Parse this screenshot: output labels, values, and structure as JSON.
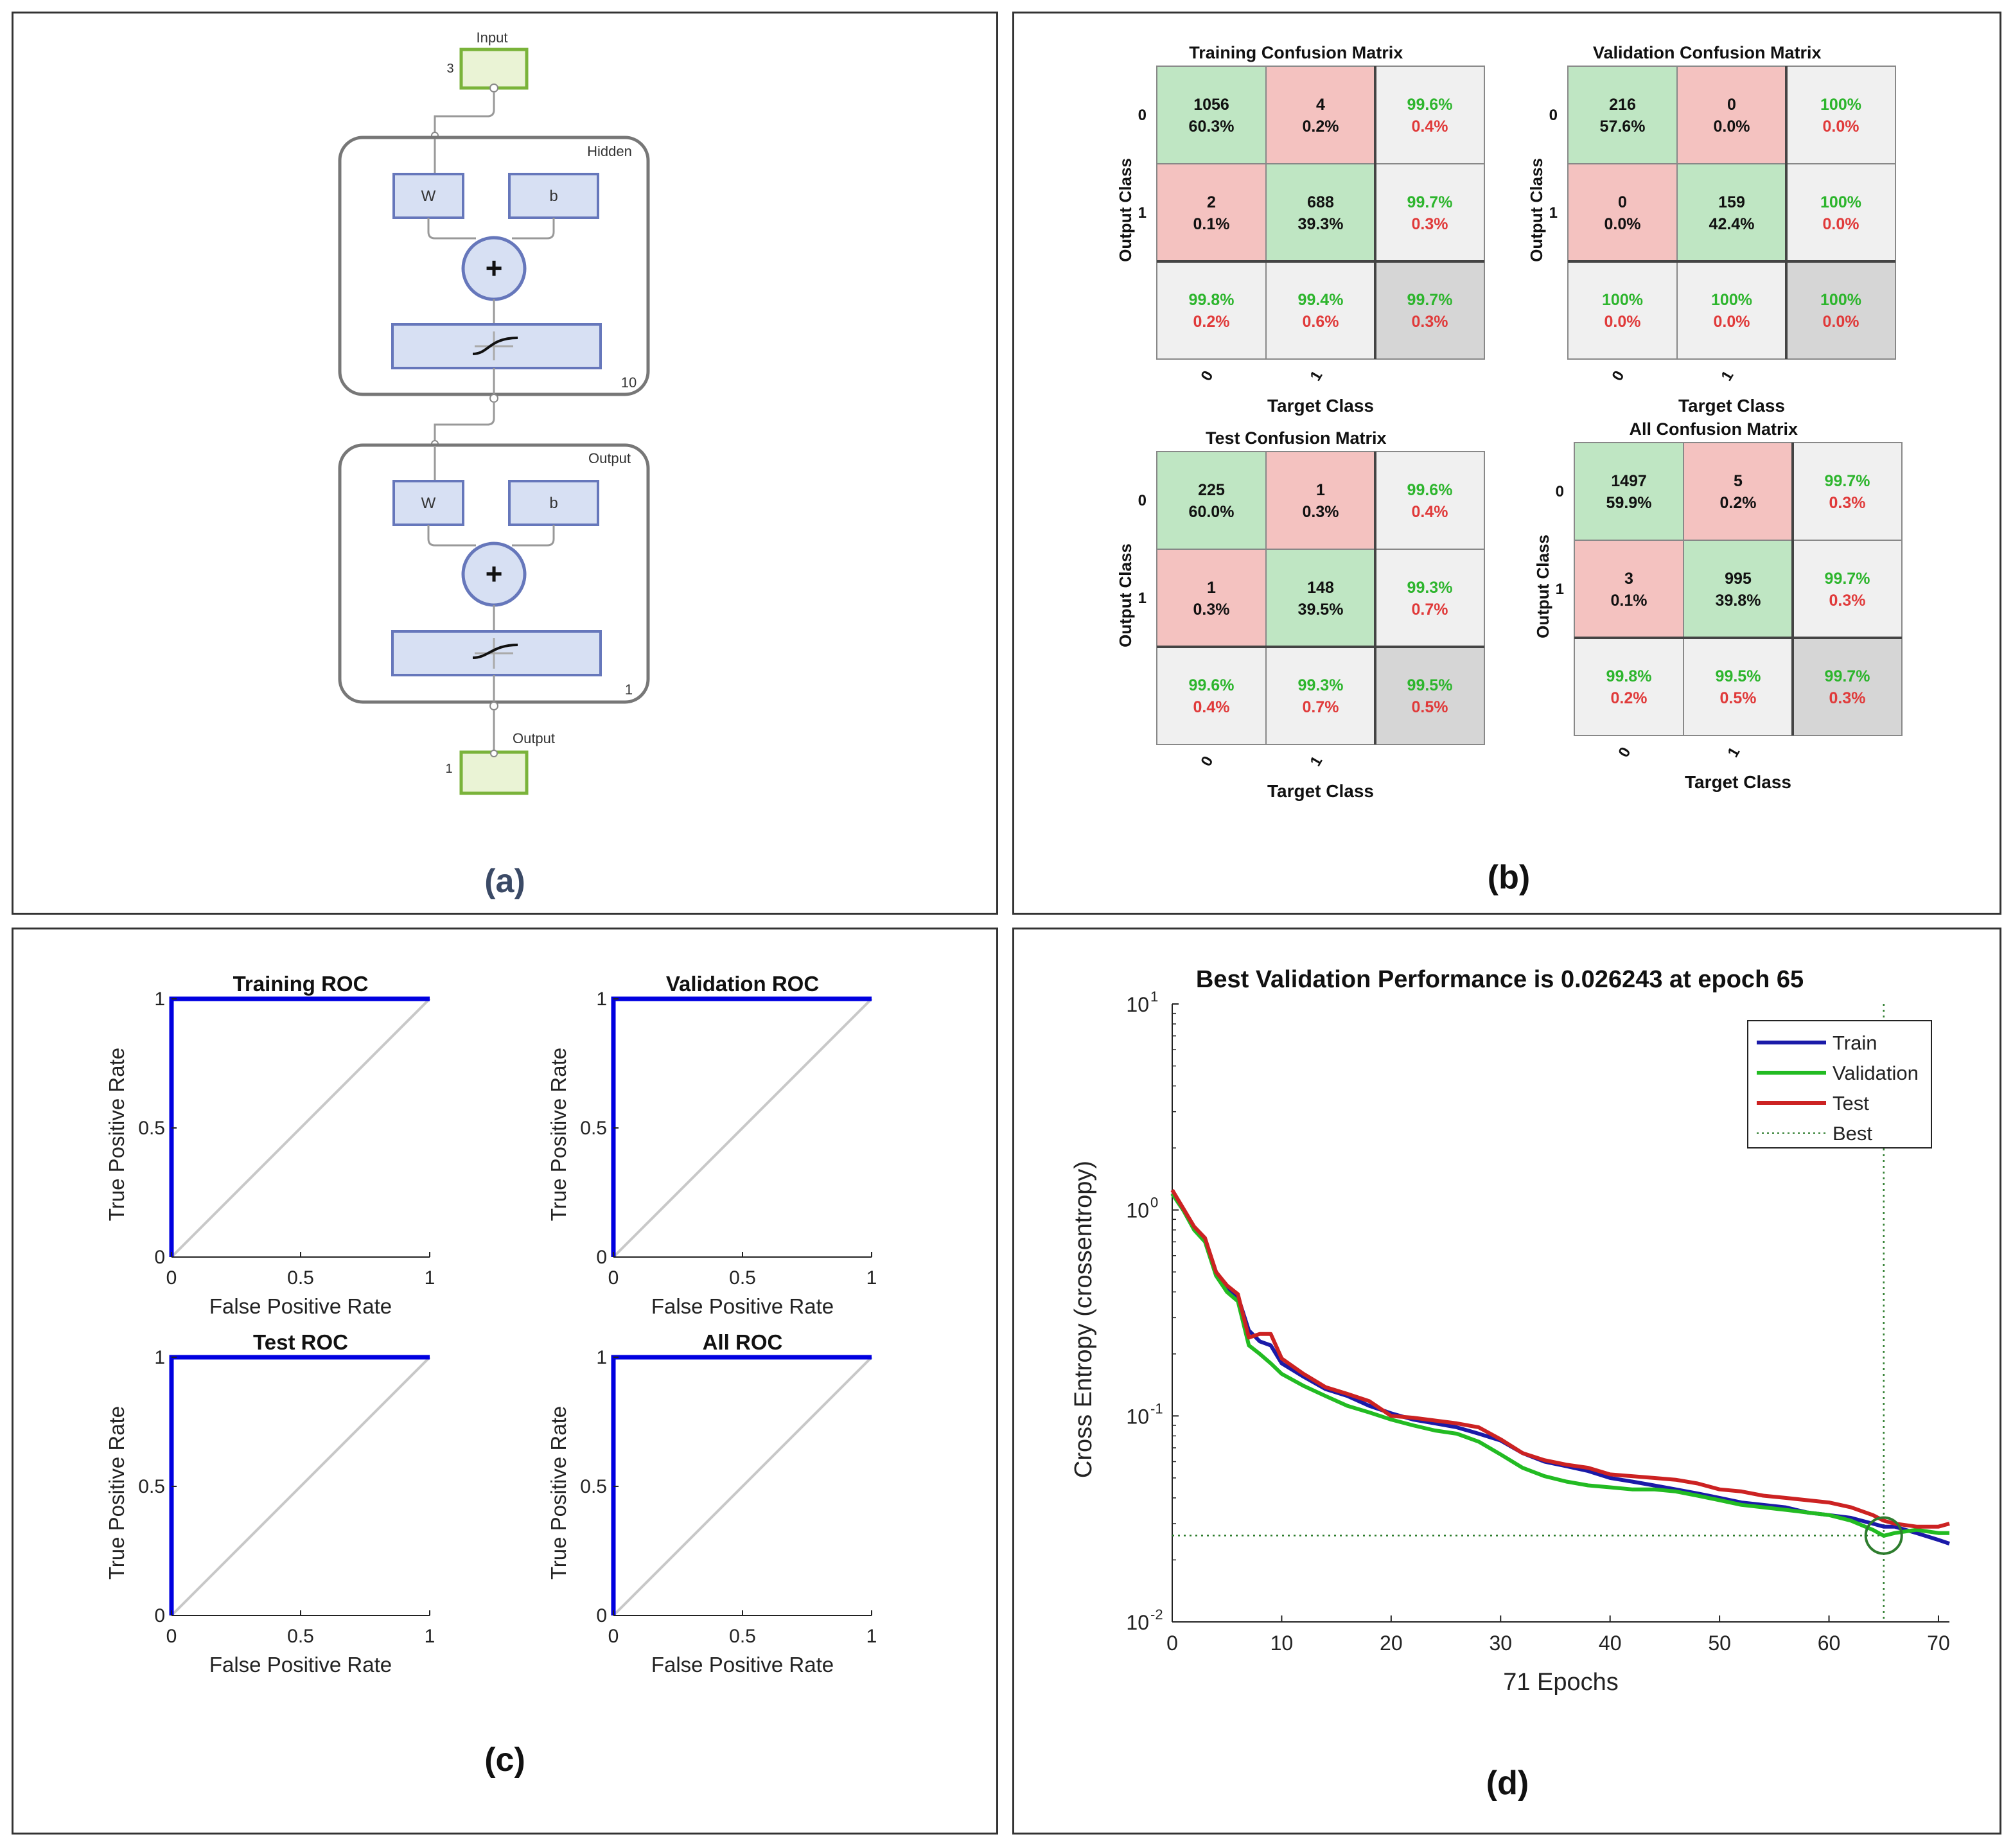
{
  "colors": {
    "green_cell": "#bfe6c3",
    "red_cell": "#f4c2c0",
    "grey_cell": "#f0f0f0",
    "dark_cell": "#d6d6d6",
    "green_text": "#2db52d",
    "red_text": "#e03a3a",
    "roc_blue": "#0000e0",
    "train_line": "#1a1aa8",
    "val_line": "#22bb22",
    "test_line": "#cc2222",
    "best_line": "#2e7d2e",
    "block_fill": "#d7e0f3",
    "block_stroke": "#6677bb",
    "io_fill": "#eaf3d5",
    "io_stroke": "#7ab33a"
  },
  "panel_labels": {
    "a": "(a)",
    "b": "(b)",
    "c": "(c)",
    "d": "(d)"
  },
  "network": {
    "input_label": "Input",
    "input_size": "3",
    "hidden_label": "Hidden",
    "hidden_size": "10",
    "output_layer_label": "Output",
    "output_layer_size": "1",
    "output_label": "Output",
    "output_size": "1",
    "w_label": "W",
    "b_label": "b",
    "plus_symbol": "+"
  },
  "confusion": [
    {
      "title": "Training Confusion Matrix",
      "ylabel": "Output Class",
      "xlabel": "Target Class",
      "row_labels": [
        "0",
        "1"
      ],
      "col_labels": [
        "0",
        "1"
      ],
      "cells": [
        [
          {
            "n": "1056",
            "p": "60.3%"
          },
          {
            "n": "4",
            "p": "0.2%"
          },
          {
            "g": "99.6%",
            "r": "0.4%"
          }
        ],
        [
          {
            "n": "2",
            "p": "0.1%"
          },
          {
            "n": "688",
            "p": "39.3%"
          },
          {
            "g": "99.7%",
            "r": "0.3%"
          }
        ],
        [
          {
            "g": "99.8%",
            "r": "0.2%"
          },
          {
            "g": "99.4%",
            "r": "0.6%"
          },
          {
            "g": "99.7%",
            "r": "0.3%"
          }
        ]
      ]
    },
    {
      "title": "Validation Confusion Matrix",
      "ylabel": "Output Class",
      "xlabel": "Target Class",
      "row_labels": [
        "0",
        "1"
      ],
      "col_labels": [
        "0",
        "1"
      ],
      "cells": [
        [
          {
            "n": "216",
            "p": "57.6%"
          },
          {
            "n": "0",
            "p": "0.0%"
          },
          {
            "g": "100%",
            "r": "0.0%"
          }
        ],
        [
          {
            "n": "0",
            "p": "0.0%"
          },
          {
            "n": "159",
            "p": "42.4%"
          },
          {
            "g": "100%",
            "r": "0.0%"
          }
        ],
        [
          {
            "g": "100%",
            "r": "0.0%"
          },
          {
            "g": "100%",
            "r": "0.0%"
          },
          {
            "g": "100%",
            "r": "0.0%"
          }
        ]
      ]
    },
    {
      "title": "Test Confusion Matrix",
      "ylabel": "Output Class",
      "xlabel": "Target Class",
      "row_labels": [
        "0",
        "1"
      ],
      "col_labels": [
        "0",
        "1"
      ],
      "cells": [
        [
          {
            "n": "225",
            "p": "60.0%"
          },
          {
            "n": "1",
            "p": "0.3%"
          },
          {
            "g": "99.6%",
            "r": "0.4%"
          }
        ],
        [
          {
            "n": "1",
            "p": "0.3%"
          },
          {
            "n": "148",
            "p": "39.5%"
          },
          {
            "g": "99.3%",
            "r": "0.7%"
          }
        ],
        [
          {
            "g": "99.6%",
            "r": "0.4%"
          },
          {
            "g": "99.3%",
            "r": "0.7%"
          },
          {
            "g": "99.5%",
            "r": "0.5%"
          }
        ]
      ]
    },
    {
      "title": "All Confusion Matrix",
      "ylabel": "Output Class",
      "xlabel": "Target Class",
      "row_labels": [
        "0",
        "1"
      ],
      "col_labels": [
        "0",
        "1"
      ],
      "cells": [
        [
          {
            "n": "1497",
            "p": "59.9%"
          },
          {
            "n": "5",
            "p": "0.2%"
          },
          {
            "g": "99.7%",
            "r": "0.3%"
          }
        ],
        [
          {
            "n": "3",
            "p": "0.1%"
          },
          {
            "n": "995",
            "p": "39.8%"
          },
          {
            "g": "99.7%",
            "r": "0.3%"
          }
        ],
        [
          {
            "g": "99.8%",
            "r": "0.2%"
          },
          {
            "g": "99.5%",
            "r": "0.5%"
          },
          {
            "g": "99.7%",
            "r": "0.3%"
          }
        ]
      ]
    }
  ],
  "chart_data": [
    {
      "type": "line",
      "title": "Training ROC",
      "xlabel": "False Positive Rate",
      "ylabel": "True Positive Rate",
      "xlim": [
        0,
        1
      ],
      "ylim": [
        0,
        1
      ],
      "xticks": [
        "0",
        "0.5",
        "1"
      ],
      "yticks": [
        "0",
        "0.5",
        "1"
      ],
      "series": [
        {
          "name": "ROC",
          "x": [
            0,
            0,
            1
          ],
          "y": [
            0,
            1,
            1
          ]
        },
        {
          "name": "diagonal",
          "x": [
            0,
            1
          ],
          "y": [
            0,
            1
          ]
        }
      ]
    },
    {
      "type": "line",
      "title": "Validation ROC",
      "xlabel": "False Positive Rate",
      "ylabel": "True Positive Rate",
      "xlim": [
        0,
        1
      ],
      "ylim": [
        0,
        1
      ],
      "xticks": [
        "0",
        "0.5",
        "1"
      ],
      "yticks": [
        "0",
        "0.5",
        "1"
      ],
      "series": [
        {
          "name": "ROC",
          "x": [
            0,
            0,
            1
          ],
          "y": [
            0,
            1,
            1
          ]
        },
        {
          "name": "diagonal",
          "x": [
            0,
            1
          ],
          "y": [
            0,
            1
          ]
        }
      ]
    },
    {
      "type": "line",
      "title": "Test ROC",
      "xlabel": "False Positive Rate",
      "ylabel": "True Positive Rate",
      "xlim": [
        0,
        1
      ],
      "ylim": [
        0,
        1
      ],
      "xticks": [
        "0",
        "0.5",
        "1"
      ],
      "yticks": [
        "0",
        "0.5",
        "1"
      ],
      "series": [
        {
          "name": "ROC",
          "x": [
            0,
            0,
            1
          ],
          "y": [
            0,
            1,
            1
          ]
        },
        {
          "name": "diagonal",
          "x": [
            0,
            1
          ],
          "y": [
            0,
            1
          ]
        }
      ]
    },
    {
      "type": "line",
      "title": "All ROC",
      "xlabel": "False Positive Rate",
      "ylabel": "True Positive Rate",
      "xlim": [
        0,
        1
      ],
      "ylim": [
        0,
        1
      ],
      "xticks": [
        "0",
        "0.5",
        "1"
      ],
      "yticks": [
        "0",
        "0.5",
        "1"
      ],
      "series": [
        {
          "name": "ROC",
          "x": [
            0,
            0,
            1
          ],
          "y": [
            0,
            1,
            1
          ]
        },
        {
          "name": "diagonal",
          "x": [
            0,
            1
          ],
          "y": [
            0,
            1
          ]
        }
      ]
    },
    {
      "type": "line",
      "title": "Best Validation Performance is 0.026243 at epoch 65",
      "xlabel": "71 Epochs",
      "ylabel": "Cross Entropy  (crossentropy)",
      "xlim": [
        0,
        71
      ],
      "ylim": [
        0.01,
        10
      ],
      "yscale": "log",
      "xticks": [
        0,
        10,
        20,
        30,
        40,
        50,
        60,
        70
      ],
      "yticks": [
        {
          "base": "10",
          "exp": "1",
          "value": 10
        },
        {
          "base": "10",
          "exp": "0",
          "value": 1
        },
        {
          "base": "10",
          "exp": "-1",
          "value": 0.1
        },
        {
          "base": "10",
          "exp": "-2",
          "value": 0.01
        }
      ],
      "best_epoch": 65,
      "best_value": 0.026243,
      "legend": [
        "Train",
        "Validation",
        "Test",
        "Best"
      ],
      "x": [
        0,
        1,
        2,
        3,
        4,
        5,
        6,
        7,
        8,
        9,
        10,
        12,
        14,
        16,
        18,
        20,
        22,
        24,
        26,
        28,
        30,
        32,
        34,
        36,
        38,
        40,
        42,
        44,
        46,
        48,
        50,
        52,
        54,
        56,
        58,
        60,
        62,
        64,
        65,
        66,
        68,
        70,
        71
      ],
      "series": [
        {
          "name": "Train",
          "values": [
            1.2,
            1.0,
            0.82,
            0.72,
            0.5,
            0.42,
            0.38,
            0.26,
            0.23,
            0.22,
            0.18,
            0.155,
            0.135,
            0.125,
            0.112,
            0.103,
            0.096,
            0.092,
            0.088,
            0.082,
            0.076,
            0.066,
            0.06,
            0.057,
            0.054,
            0.05,
            0.048,
            0.046,
            0.044,
            0.042,
            0.04,
            0.038,
            0.037,
            0.036,
            0.034,
            0.033,
            0.032,
            0.03,
            0.029,
            0.029,
            0.027,
            0.025,
            0.024
          ]
        },
        {
          "name": "Validation",
          "values": [
            1.2,
            1.0,
            0.8,
            0.7,
            0.48,
            0.4,
            0.36,
            0.22,
            0.2,
            0.18,
            0.16,
            0.14,
            0.125,
            0.112,
            0.104,
            0.096,
            0.09,
            0.085,
            0.082,
            0.075,
            0.065,
            0.056,
            0.051,
            0.048,
            0.046,
            0.045,
            0.044,
            0.044,
            0.043,
            0.041,
            0.039,
            0.037,
            0.036,
            0.035,
            0.034,
            0.033,
            0.031,
            0.028,
            0.0262,
            0.027,
            0.028,
            0.027,
            0.027
          ]
        },
        {
          "name": "Test",
          "values": [
            1.25,
            1.02,
            0.83,
            0.73,
            0.5,
            0.43,
            0.39,
            0.24,
            0.25,
            0.25,
            0.19,
            0.16,
            0.138,
            0.128,
            0.118,
            0.1,
            0.098,
            0.095,
            0.092,
            0.088,
            0.077,
            0.066,
            0.061,
            0.058,
            0.056,
            0.052,
            0.051,
            0.05,
            0.049,
            0.047,
            0.044,
            0.043,
            0.041,
            0.04,
            0.039,
            0.038,
            0.036,
            0.033,
            0.031,
            0.03,
            0.029,
            0.029,
            0.03
          ]
        }
      ]
    }
  ]
}
